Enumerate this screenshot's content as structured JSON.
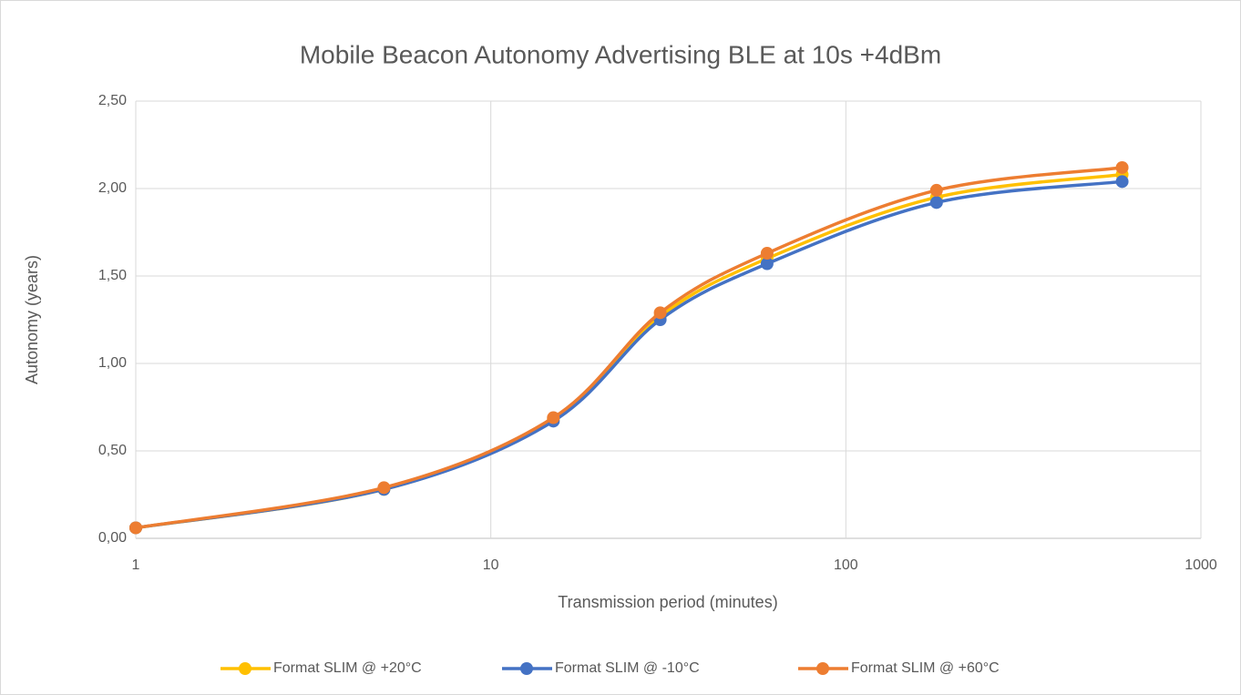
{
  "chart_data": {
    "type": "line",
    "title": "Mobile Beacon Autonomy Advertising BLE at 10s +4dBm",
    "x_label": "Transmission period (minutes)",
    "y_label": "Autonomy (years)",
    "x": [
      1,
      5,
      15,
      30,
      60,
      180,
      600
    ],
    "x_log": true,
    "xlim": [
      1,
      1000
    ],
    "xticks": [
      1,
      10,
      100,
      1000
    ],
    "ylim": [
      0,
      2.5
    ],
    "yticks": [
      {
        "value": 0,
        "label": "0,00"
      },
      {
        "value": 0.5,
        "label": "0,50"
      },
      {
        "value": 1,
        "label": "1,00"
      },
      {
        "value": 1.5,
        "label": "1,50"
      },
      {
        "value": 2,
        "label": "2,00"
      },
      {
        "value": 2.5,
        "label": "2,50"
      }
    ],
    "grid": true,
    "legend": "bottom",
    "series": [
      {
        "name": "Format SLIM @ +20°C",
        "color": "#FFC000",
        "values": [
          0.06,
          0.28,
          0.68,
          1.27,
          1.6,
          1.95,
          2.08
        ]
      },
      {
        "name": "Format SLIM @ -10°C",
        "color": "#4472C4",
        "values": [
          0.06,
          0.28,
          0.67,
          1.25,
          1.57,
          1.92,
          2.04
        ]
      },
      {
        "name": "Format SLIM @ +60°C",
        "color": "#ED7D31",
        "values": [
          0.06,
          0.29,
          0.69,
          1.29,
          1.63,
          1.99,
          2.12
        ]
      }
    ]
  }
}
